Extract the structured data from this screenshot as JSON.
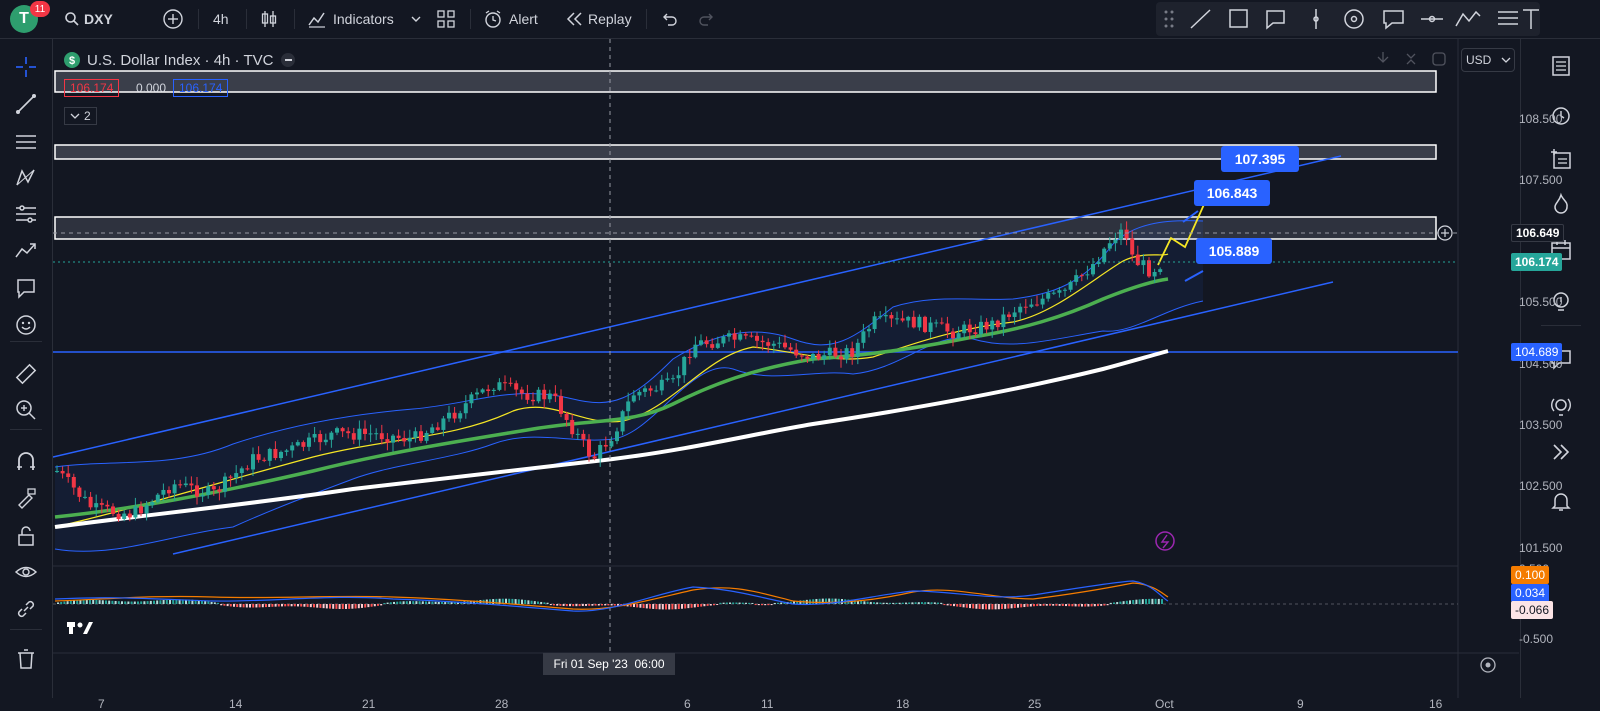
{
  "header": {
    "avatar_letter": "T",
    "notification_count": "11",
    "symbol": "DXY",
    "interval": "4h",
    "indicators_label": "Indicators",
    "alert_label": "Alert",
    "replay_label": "Replay"
  },
  "legend": {
    "title": "U.S. Dollar Index · 4h · TVC",
    "bid": "106.174",
    "spread": "0.000",
    "ask": "106.174",
    "indicators_collapsed": "2"
  },
  "currency": "USD",
  "price_axis": {
    "ticks": [
      "108.500",
      "107.500",
      "105.500",
      "104.500",
      "103.500",
      "102.500",
      "101.500"
    ],
    "crosshair_price": "106.649",
    "last_price": "106.174",
    "line_price": "104.689",
    "osc_ticks": [
      "0.500",
      "-0.500"
    ],
    "osc_values": [
      "0.100",
      "0.034",
      "-0.066"
    ]
  },
  "time_axis": {
    "ticks": [
      "7",
      "14",
      "21",
      "28",
      "6",
      "11",
      "18",
      "25",
      "Oct",
      "9",
      "16"
    ],
    "crosshair_label": "Fri 01 Sep '23  06:00"
  },
  "callouts": [
    "107.395",
    "106.843",
    "105.889"
  ],
  "colors": {
    "up": "#26a69a",
    "down": "#f23645",
    "accent": "#2962ff",
    "yellow": "#f5e625",
    "green": "#4caf50"
  },
  "icons": {
    "left_toolbar": [
      "crosshair-icon",
      "trendline-icon",
      "fib-icon",
      "pattern-icon",
      "gann-icon",
      "prediction-icon",
      "annotation-icon",
      "emoji-icon",
      "ruler-icon",
      "zoom-icon",
      "magnet-icon",
      "lock-draw-icon",
      "lock-icon",
      "eye-icon",
      "link-icon",
      "trash-icon"
    ],
    "right_toolbar": [
      "watchlist-icon",
      "alerts-clock-icon",
      "add-list-icon",
      "hotlist-icon",
      "calendar-icon",
      "ideas-icon",
      "chat-icon",
      "streams-icon",
      "replay-icon",
      "notifications-icon"
    ]
  }
}
